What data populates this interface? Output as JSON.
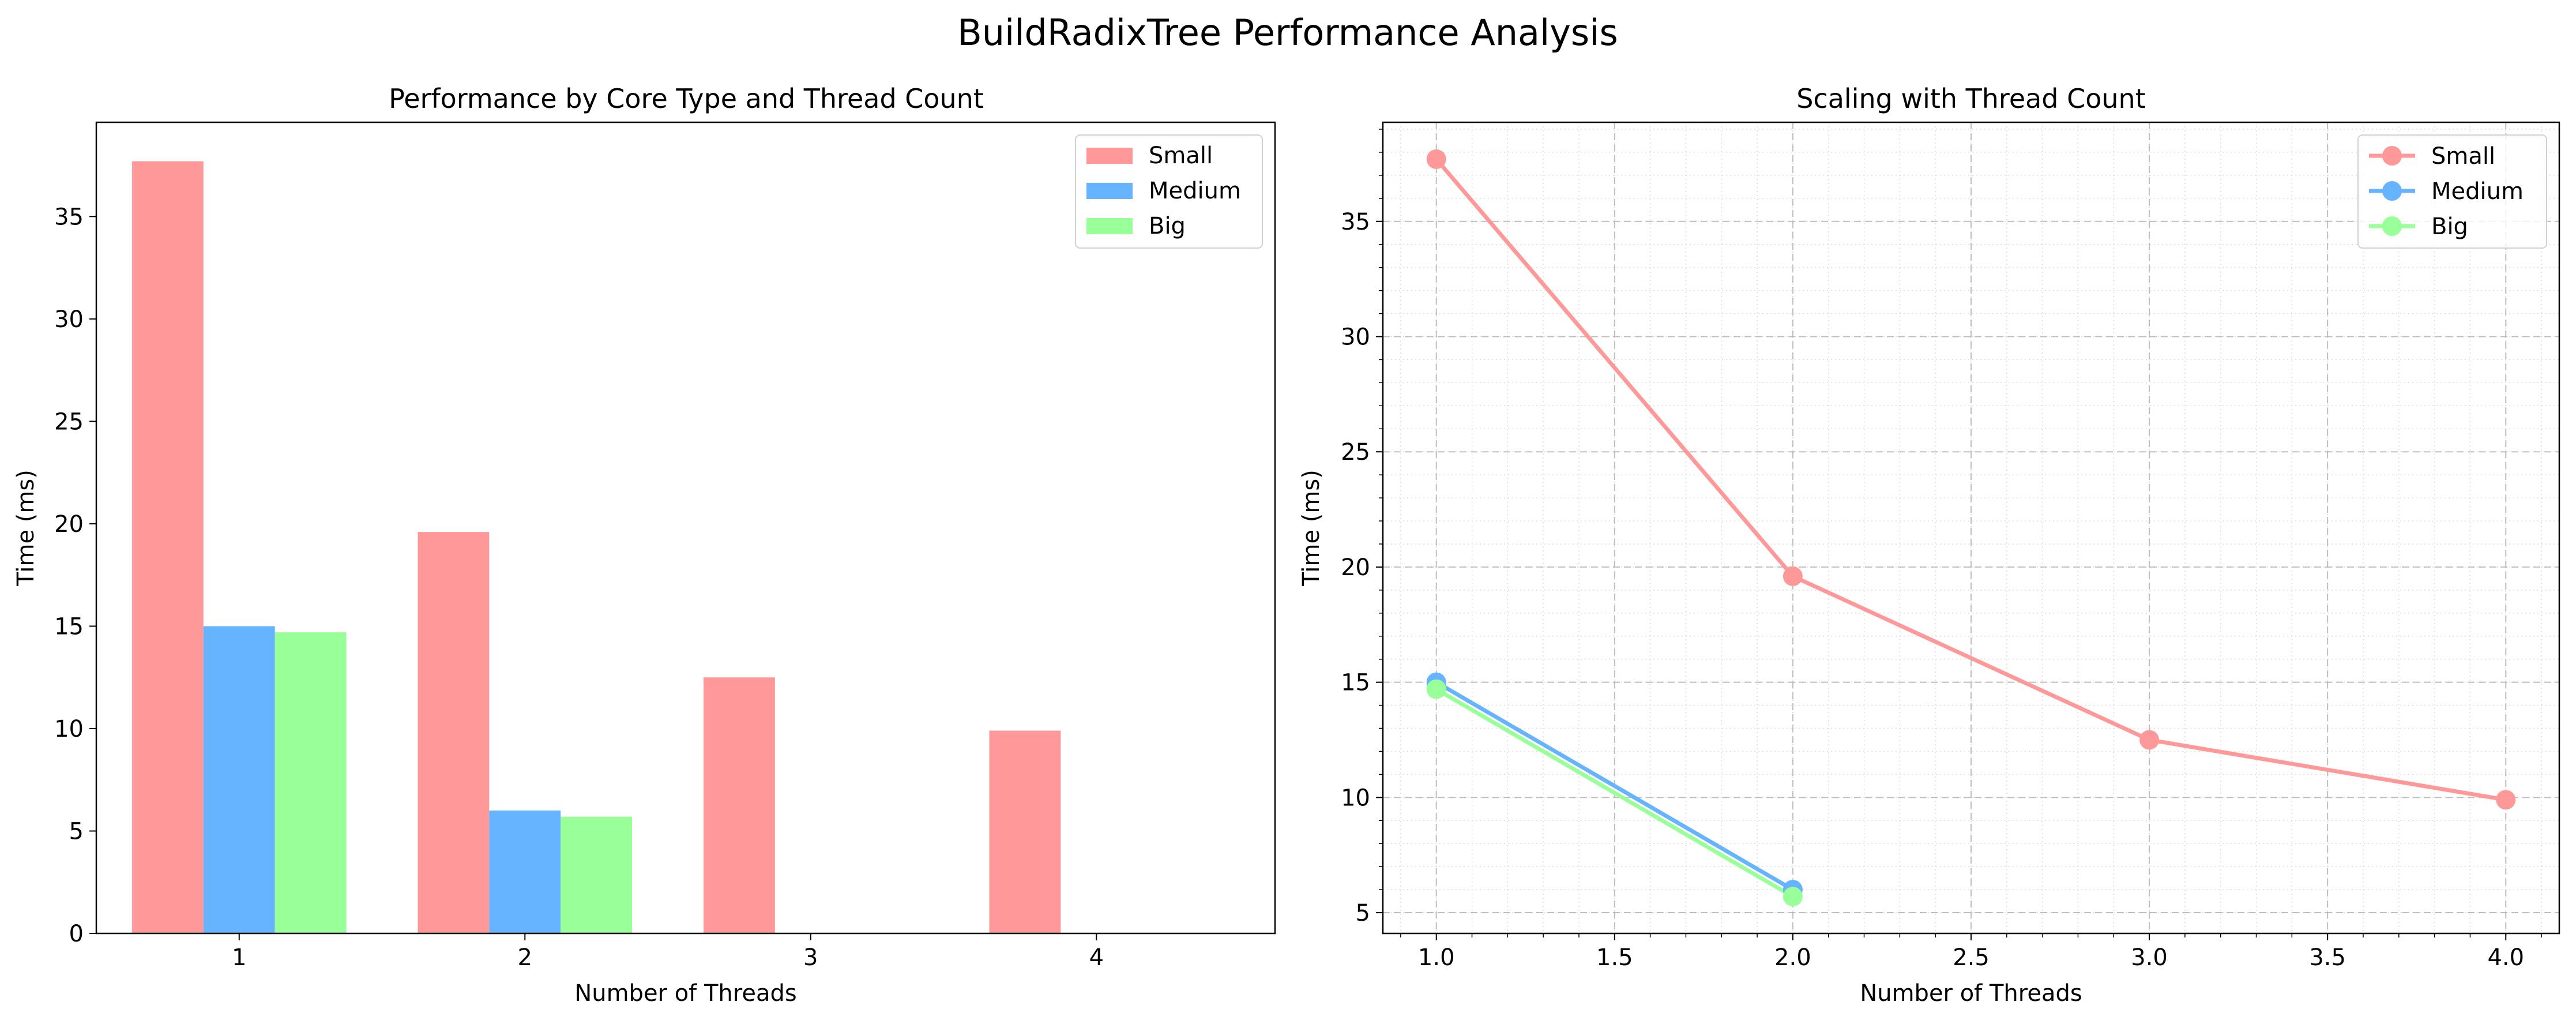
{
  "figure_title": "BuildRadixTree Performance Analysis",
  "colors": {
    "Small": "#ff9999",
    "Medium": "#66b3ff",
    "Big": "#99ff99"
  },
  "chart_data": [
    {
      "type": "bar",
      "title": "Performance by Core Type and Thread Count",
      "xlabel": "Number of Threads",
      "ylabel": "Time (ms)",
      "categories": [
        "1",
        "2",
        "3",
        "4"
      ],
      "series": [
        {
          "name": "Small",
          "values": [
            37.7,
            19.6,
            12.5,
            9.9
          ]
        },
        {
          "name": "Medium",
          "values": [
            15.0,
            6.0,
            null,
            null
          ]
        },
        {
          "name": "Big",
          "values": [
            14.7,
            5.7,
            null,
            null
          ]
        }
      ],
      "ylim": [
        0,
        39.6
      ],
      "yticks": [
        0,
        5,
        10,
        15,
        20,
        25,
        30,
        35
      ],
      "legend": "upper-right",
      "grid": false
    },
    {
      "type": "line",
      "title": "Scaling with Thread Count",
      "xlabel": "Number of Threads",
      "ylabel": "Time (ms)",
      "series": [
        {
          "name": "Small",
          "x": [
            1.0,
            2.0,
            3.0,
            4.0
          ],
          "y": [
            37.7,
            19.6,
            12.5,
            9.9
          ]
        },
        {
          "name": "Medium",
          "x": [
            1.0,
            2.0
          ],
          "y": [
            15.0,
            6.0
          ]
        },
        {
          "name": "Big",
          "x": [
            1.0,
            2.0
          ],
          "y": [
            14.7,
            5.7
          ]
        }
      ],
      "xlim": [
        0.85,
        4.15
      ],
      "ylim": [
        4.1,
        39.3
      ],
      "xticks": [
        1.0,
        1.5,
        2.0,
        2.5,
        3.0,
        3.5,
        4.0
      ],
      "xtick_labels": [
        "1.0",
        "1.5",
        "2.0",
        "2.5",
        "3.0",
        "3.5",
        "4.0"
      ],
      "yticks": [
        5,
        10,
        15,
        20,
        25,
        30,
        35
      ],
      "legend": "upper-right",
      "grid": true,
      "minor_grid": true
    }
  ]
}
